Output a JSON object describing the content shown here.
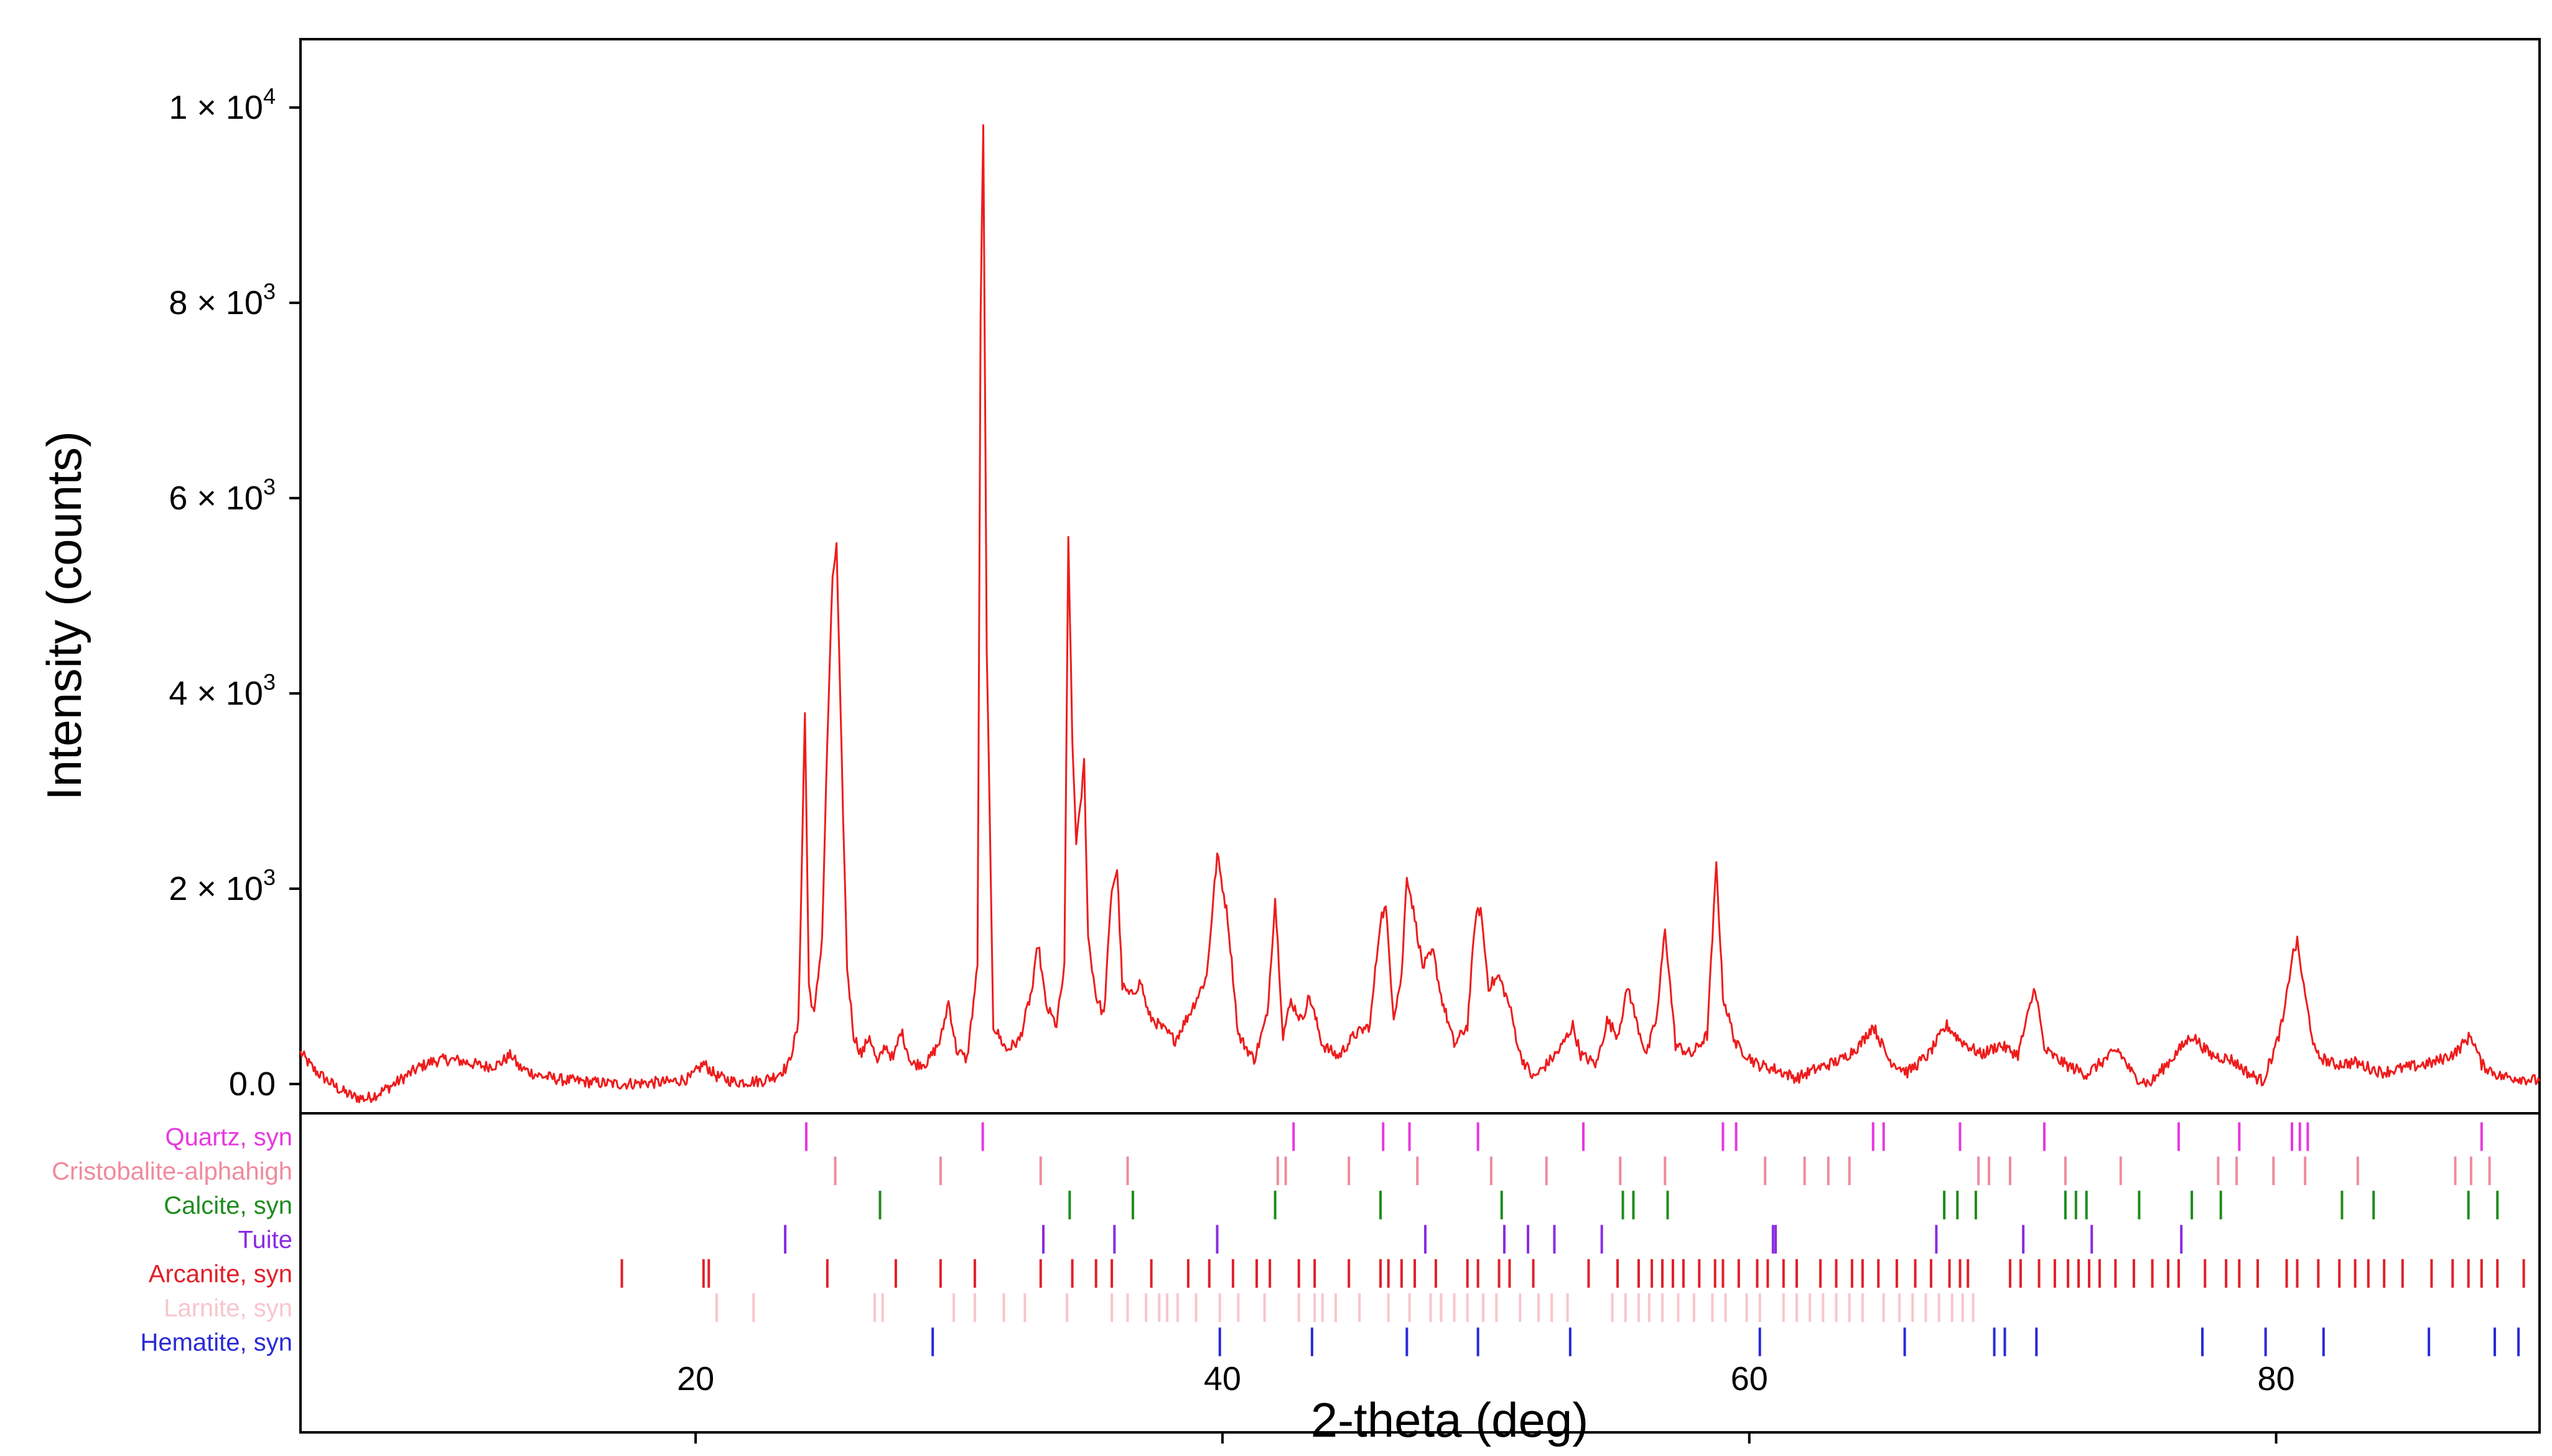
{
  "chart_data": {
    "type": "line",
    "xlabel": "2-theta (deg)",
    "ylabel": "Intensity (counts)",
    "xlim": [
      5,
      90
    ],
    "ylim": [
      -300,
      10700
    ],
    "x_ticks": [
      {
        "value": 20,
        "label": "20"
      },
      {
        "value": 40,
        "label": "40"
      },
      {
        "value": 60,
        "label": "60"
      },
      {
        "value": 80,
        "label": "80"
      }
    ],
    "y_ticks": [
      {
        "value": 0,
        "label": "0.0",
        "sup": ""
      },
      {
        "value": 2000,
        "label": "2 × 10",
        "sup": "3"
      },
      {
        "value": 4000,
        "label": "4 × 10",
        "sup": "3"
      },
      {
        "value": 6000,
        "label": "6 × 10",
        "sup": "3"
      },
      {
        "value": 8000,
        "label": "8 × 10",
        "sup": "3"
      },
      {
        "value": 10000,
        "label": "1 × 10",
        "sup": "4"
      }
    ],
    "line_color": "#ee1c1c",
    "series": [
      {
        "color": "#ee1c1c",
        "points": [
          [
            5,
            320
          ],
          [
            5.5,
            150
          ],
          [
            6,
            40
          ],
          [
            6.5,
            -60
          ],
          [
            7,
            -130
          ],
          [
            7.5,
            -150
          ],
          [
            8,
            -90
          ],
          [
            8.5,
            -10
          ],
          [
            9,
            80
          ],
          [
            9.5,
            170
          ],
          [
            10,
            230
          ],
          [
            10.5,
            250
          ],
          [
            11,
            240
          ],
          [
            11.5,
            210
          ],
          [
            12,
            180
          ],
          [
            12.5,
            200
          ],
          [
            13,
            300
          ],
          [
            13.3,
            170
          ],
          [
            14,
            90
          ],
          [
            15,
            40
          ],
          [
            16,
            20
          ],
          [
            17,
            0
          ],
          [
            18,
            10
          ],
          [
            19,
            20
          ],
          [
            19.8,
            60
          ],
          [
            20.3,
            210
          ],
          [
            20.8,
            80
          ],
          [
            21.5,
            20
          ],
          [
            22.5,
            30
          ],
          [
            23,
            80
          ],
          [
            23.5,
            180
          ],
          [
            23.9,
            600
          ],
          [
            24.15,
            3800
          ],
          [
            24.3,
            1000
          ],
          [
            24.5,
            700
          ],
          [
            24.8,
            1500
          ],
          [
            25,
            3500
          ],
          [
            25.2,
            5200
          ],
          [
            25.35,
            5500
          ],
          [
            25.5,
            3800
          ],
          [
            25.75,
            1200
          ],
          [
            26,
            500
          ],
          [
            26.3,
            300
          ],
          [
            26.6,
            500
          ],
          [
            26.9,
            200
          ],
          [
            27.2,
            400
          ],
          [
            27.5,
            250
          ],
          [
            27.8,
            550
          ],
          [
            28.2,
            200
          ],
          [
            28.8,
            220
          ],
          [
            29.3,
            450
          ],
          [
            29.6,
            850
          ],
          [
            29.9,
            350
          ],
          [
            30.3,
            250
          ],
          [
            30.7,
            1200
          ],
          [
            30.82,
            7900
          ],
          [
            30.92,
            9800
          ],
          [
            31.05,
            4500
          ],
          [
            31.3,
            600
          ],
          [
            31.8,
            350
          ],
          [
            32.3,
            450
          ],
          [
            32.8,
            1000
          ],
          [
            33,
            1450
          ],
          [
            33.3,
            800
          ],
          [
            33.7,
            600
          ],
          [
            34,
            1200
          ],
          [
            34.15,
            5600
          ],
          [
            34.3,
            3500
          ],
          [
            34.45,
            2500
          ],
          [
            34.6,
            2800
          ],
          [
            34.75,
            3300
          ],
          [
            34.9,
            1500
          ],
          [
            35.2,
            900
          ],
          [
            35.5,
            700
          ],
          [
            35.8,
            2000
          ],
          [
            36,
            2200
          ],
          [
            36.2,
            1000
          ],
          [
            36.5,
            900
          ],
          [
            36.9,
            1050
          ],
          [
            37.2,
            700
          ],
          [
            37.6,
            600
          ],
          [
            38.2,
            450
          ],
          [
            38.8,
            750
          ],
          [
            39.4,
            1100
          ],
          [
            39.8,
            2350
          ],
          [
            40.2,
            1700
          ],
          [
            40.6,
            500
          ],
          [
            41.2,
            250
          ],
          [
            41.7,
            700
          ],
          [
            42,
            1900
          ],
          [
            42.3,
            500
          ],
          [
            42.6,
            850
          ],
          [
            43,
            650
          ],
          [
            43.3,
            900
          ],
          [
            43.8,
            400
          ],
          [
            44.4,
            280
          ],
          [
            45,
            500
          ],
          [
            45.6,
            600
          ],
          [
            46,
            1700
          ],
          [
            46.2,
            1800
          ],
          [
            46.5,
            700
          ],
          [
            46.8,
            1100
          ],
          [
            47,
            2150
          ],
          [
            47.3,
            1700
          ],
          [
            47.6,
            1200
          ],
          [
            48,
            1350
          ],
          [
            48.3,
            900
          ],
          [
            48.8,
            400
          ],
          [
            49.3,
            600
          ],
          [
            49.6,
            1700
          ],
          [
            49.8,
            1800
          ],
          [
            50.1,
            1000
          ],
          [
            50.5,
            1100
          ],
          [
            50.9,
            800
          ],
          [
            51.3,
            300
          ],
          [
            51.8,
            60
          ],
          [
            52.3,
            200
          ],
          [
            52.8,
            350
          ],
          [
            53.3,
            600
          ],
          [
            53.6,
            300
          ],
          [
            54.2,
            200
          ],
          [
            54.6,
            650
          ],
          [
            55,
            500
          ],
          [
            55.4,
            1000
          ],
          [
            55.7,
            650
          ],
          [
            56.1,
            300
          ],
          [
            56.5,
            700
          ],
          [
            56.8,
            1600
          ],
          [
            57.2,
            400
          ],
          [
            57.8,
            300
          ],
          [
            58.4,
            500
          ],
          [
            58.75,
            2250
          ],
          [
            59,
            900
          ],
          [
            59.5,
            400
          ],
          [
            60.3,
            200
          ],
          [
            61,
            150
          ],
          [
            61.8,
            60
          ],
          [
            62.5,
            150
          ],
          [
            63.5,
            250
          ],
          [
            64.2,
            400
          ],
          [
            64.7,
            600
          ],
          [
            65.3,
            250
          ],
          [
            66,
            120
          ],
          [
            66.8,
            300
          ],
          [
            67.5,
            600
          ],
          [
            68,
            450
          ],
          [
            68.8,
            300
          ],
          [
            69.5,
            400
          ],
          [
            70.2,
            300
          ],
          [
            70.85,
            1000
          ],
          [
            71.2,
            350
          ],
          [
            72,
            200
          ],
          [
            72.8,
            100
          ],
          [
            73.5,
            250
          ],
          [
            74,
            350
          ],
          [
            74.6,
            80
          ],
          [
            75.2,
            0
          ],
          [
            76,
            250
          ],
          [
            76.8,
            500
          ],
          [
            77.5,
            300
          ],
          [
            78.3,
            250
          ],
          [
            79,
            100
          ],
          [
            79.5,
            30
          ],
          [
            80,
            400
          ],
          [
            80.3,
            700
          ],
          [
            80.6,
            1300
          ],
          [
            80.8,
            1450
          ],
          [
            81.1,
            900
          ],
          [
            81.5,
            300
          ],
          [
            82.2,
            200
          ],
          [
            83,
            220
          ],
          [
            84,
            120
          ],
          [
            85,
            170
          ],
          [
            86,
            220
          ],
          [
            86.8,
            320
          ],
          [
            87.4,
            500
          ],
          [
            87.8,
            200
          ],
          [
            88.5,
            80
          ],
          [
            89.3,
            60
          ],
          [
            90,
            30
          ]
        ]
      }
    ],
    "phase_rows": [
      {
        "name": "Quartz, syn",
        "color": "#e837e0",
        "positions": [
          24.2,
          30.9,
          42.7,
          46.1,
          47.1,
          49.7,
          53.7,
          59,
          59.5,
          64.7,
          65.1,
          68,
          71.2,
          76.3,
          78.6,
          80.6,
          80.9,
          81.2,
          87.8
        ]
      },
      {
        "name": "Cristobalite-alphahigh",
        "color": "#f08a9c",
        "positions": [
          25.3,
          29.3,
          33.1,
          36.4,
          42.1,
          42.4,
          44.8,
          47.4,
          50.2,
          52.3,
          55.1,
          56.8,
          60.6,
          62.1,
          63,
          63.8,
          68.7,
          69.1,
          69.9,
          72,
          74.1,
          77.8,
          78.5,
          79.9,
          81.1,
          83.1,
          86.8,
          87.4,
          88.1
        ]
      },
      {
        "name": "Calcite, syn",
        "color": "#1e8c1e",
        "positions": [
          27,
          34.2,
          36.6,
          42,
          46,
          50.6,
          55.2,
          55.6,
          56.9,
          67.4,
          67.9,
          68.6,
          72,
          72.4,
          72.8,
          74.8,
          76.8,
          77.9,
          82.5,
          83.7,
          87.3,
          88.4
        ]
      },
      {
        "name": "Tuite",
        "color": "#8a2be2",
        "positions": [
          23.4,
          33.2,
          35.9,
          39.8,
          47.7,
          50.7,
          51.6,
          52.6,
          54.4,
          60.9,
          61,
          67.1,
          70.4,
          73,
          76.4
        ]
      },
      {
        "name": "Arcanite, syn",
        "color": "#e0202a",
        "positions": [
          17.2,
          20.3,
          20.5,
          25,
          27.6,
          29.3,
          30.6,
          33.1,
          34.3,
          35.2,
          35.8,
          37.3,
          38.7,
          39.5,
          40.4,
          41.3,
          41.8,
          42.9,
          43.5,
          44.8,
          46,
          46.3,
          46.8,
          47.3,
          48.1,
          49.3,
          49.7,
          50.5,
          50.9,
          51.8,
          53.9,
          55,
          55.8,
          56.3,
          56.7,
          57.1,
          57.5,
          58.1,
          58.7,
          59,
          59.6,
          60.3,
          60.7,
          61.3,
          61.8,
          62.7,
          63.3,
          63.9,
          64.3,
          64.9,
          65.6,
          66.3,
          66.9,
          67.6,
          68,
          68.3,
          69.9,
          70.3,
          71,
          71.6,
          72.1,
          72.5,
          72.9,
          73.3,
          73.9,
          74.6,
          75.3,
          75.9,
          76.3,
          77.3,
          78.1,
          78.6,
          79.3,
          80.4,
          80.8,
          81.6,
          82.4,
          83,
          83.5,
          84.1,
          84.8,
          85.9,
          86.7,
          87.3,
          87.8,
          88.4,
          89.4
        ]
      },
      {
        "name": "Larnite, syn",
        "color": "#f7c6cc",
        "positions": [
          20.8,
          22.2,
          26.8,
          27.1,
          29.8,
          30.6,
          31.7,
          32.5,
          34.1,
          35.8,
          36.4,
          37.1,
          37.6,
          37.9,
          38.3,
          39,
          39.9,
          40.6,
          41.6,
          42.9,
          43.5,
          43.8,
          44.3,
          45.2,
          46.3,
          47.1,
          47.9,
          48.3,
          48.8,
          49.3,
          49.9,
          50.4,
          51.3,
          52,
          52.5,
          53.1,
          54.8,
          55.3,
          55.8,
          56.2,
          56.7,
          57.3,
          57.9,
          58.6,
          59.1,
          59.9,
          60.4,
          61.3,
          61.8,
          62.3,
          62.8,
          63.3,
          63.8,
          64.3,
          65.1,
          65.7,
          66.2,
          66.7,
          67.2,
          67.7,
          68.1,
          68.5
        ]
      },
      {
        "name": "Hematite, syn",
        "color": "#2a2ad6",
        "positions": [
          29,
          39.9,
          43.4,
          47,
          49.7,
          53.2,
          60.4,
          65.9,
          69.3,
          69.7,
          70.9,
          77.2,
          79.6,
          81.8,
          85.8,
          88.3,
          89.2
        ]
      }
    ]
  }
}
